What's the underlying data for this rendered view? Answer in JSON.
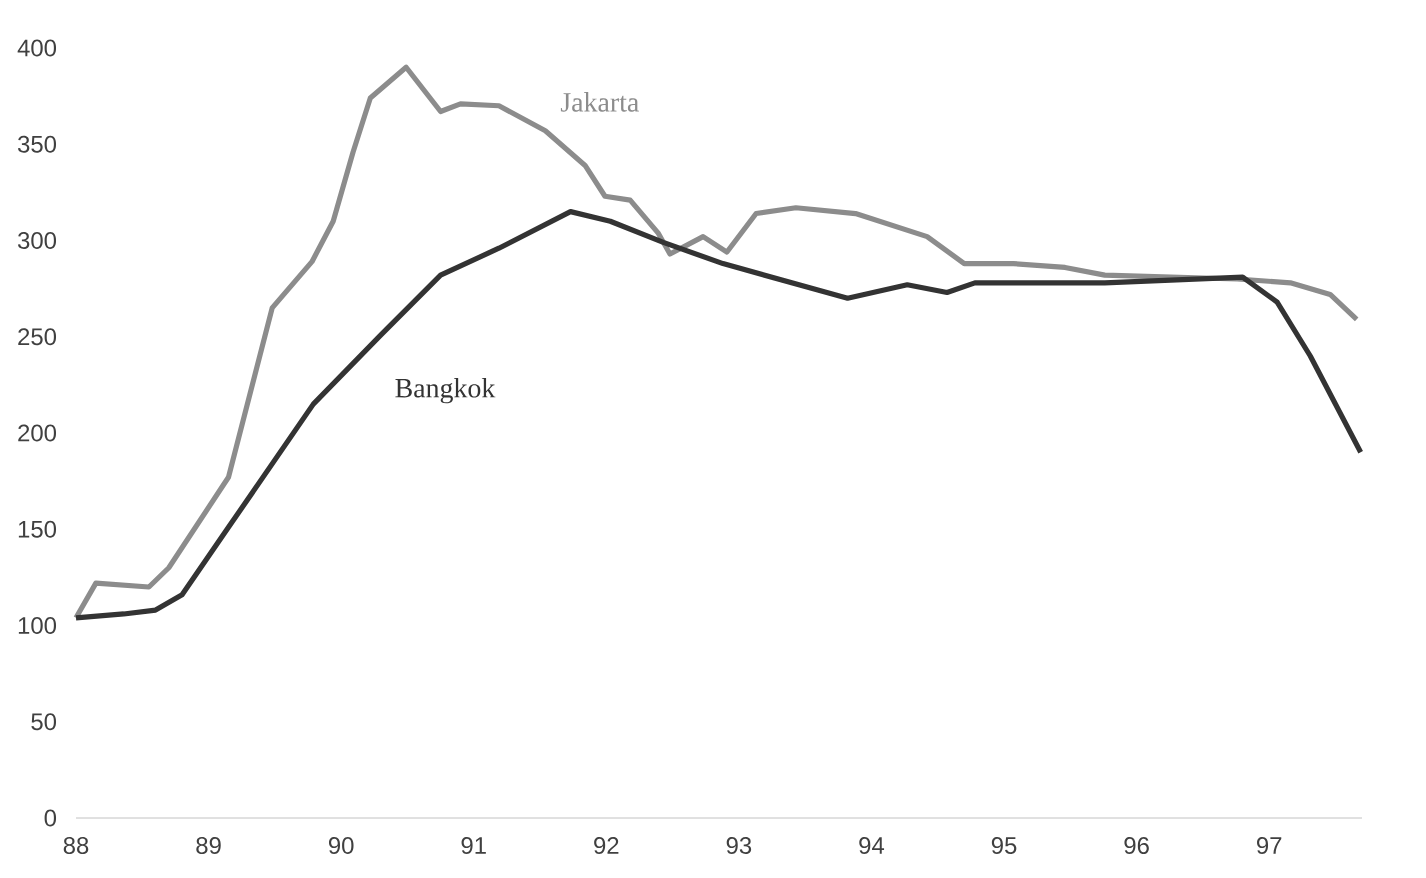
{
  "chart_data": {
    "type": "line",
    "xlim": [
      88,
      97.7
    ],
    "xticks": [
      88,
      89,
      90,
      91,
      92,
      93,
      94,
      95,
      96,
      97
    ],
    "ylim": [
      0,
      400
    ],
    "yticks": [
      0,
      50,
      100,
      150,
      200,
      250,
      300,
      350,
      400
    ],
    "grid": false,
    "legend": false,
    "marker": "none",
    "line_style": "solid",
    "series": [
      {
        "name": "Jakarta",
        "color": "#8c8c8c",
        "x": [
          88,
          88.15,
          88.55,
          88.7,
          89.15,
          89.48,
          89.78,
          89.94,
          90.09,
          90.22,
          90.49,
          90.75,
          90.9,
          91.19,
          91.54,
          91.84,
          91.99,
          92.18,
          92.39,
          92.48,
          92.73,
          92.91,
          93.13,
          93.43,
          93.88,
          94.42,
          94.7,
          95.07,
          95.46,
          95.76,
          96.76,
          97.16,
          97.46,
          97.66
        ],
        "values": [
          104,
          122,
          120,
          130,
          177,
          265,
          289,
          310,
          346,
          374,
          390,
          367,
          371,
          370,
          357,
          339,
          323,
          321,
          304,
          293,
          302,
          294,
          314,
          317,
          314,
          302,
          288,
          288,
          286,
          282,
          280,
          278,
          272,
          259
        ]
      },
      {
        "name": "Bangkok",
        "color": "#333333",
        "x": [
          88,
          88.36,
          88.6,
          88.8,
          89.15,
          89.79,
          90.3,
          90.75,
          91.19,
          91.73,
          92.03,
          92.43,
          92.88,
          93.82,
          94.27,
          94.57,
          94.78,
          95.76,
          96.8,
          97.06,
          97.31,
          97.69
        ],
        "values": [
          104,
          106,
          108,
          116,
          151,
          215,
          251,
          282,
          296,
          315,
          310,
          299,
          288,
          270,
          277,
          273,
          278,
          278,
          281,
          268,
          240,
          190
        ]
      }
    ]
  }
}
